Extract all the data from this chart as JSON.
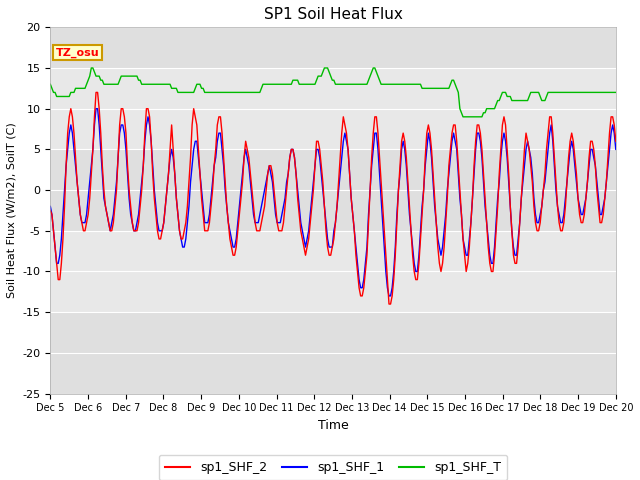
{
  "title": "SP1 Soil Heat Flux",
  "xlabel": "Time",
  "ylabel": "Soil Heat Flux (W/m2), SoilT (C)",
  "ylim": [
    -25,
    20
  ],
  "xlim": [
    0,
    360
  ],
  "background_color": "#ffffff",
  "plot_bg_color": "#e8e8e8",
  "grid_color": "#ffffff",
  "tz_label": "TZ_osu",
  "legend_entries": [
    "sp1_SHF_2",
    "sp1_SHF_1",
    "sp1_SHF_T"
  ],
  "line_colors": [
    "#ff0000",
    "#0000ff",
    "#00bb00"
  ],
  "tick_labels": [
    "Dec 5",
    "Dec 6",
    "Dec 7",
    "Dec 8",
    "Dec 9",
    "Dec 10",
    "Dec 11",
    "Dec 12",
    "Dec 13",
    "Dec 14",
    "Dec 15",
    "Dec 16",
    "Dec 17",
    "Dec 18",
    "Dec 19",
    "Dec 20"
  ],
  "tick_positions": [
    0,
    24,
    48,
    72,
    96,
    120,
    144,
    168,
    192,
    216,
    240,
    264,
    288,
    312,
    336,
    360
  ],
  "yticks": [
    -25,
    -20,
    -15,
    -10,
    -5,
    0,
    5,
    10,
    15,
    20
  ],
  "figsize": [
    6.4,
    4.8
  ],
  "dpi": 100,
  "shf2_data": [
    -2.5,
    -3,
    -5,
    -7,
    -9,
    -11,
    -11,
    -9,
    -6,
    -2,
    3,
    7,
    9,
    10,
    9,
    7,
    4,
    1,
    -1,
    -3,
    -4,
    -5,
    -5,
    -4,
    -3,
    -1,
    2,
    5,
    9,
    12,
    12,
    10,
    7,
    3,
    0,
    -2,
    -3,
    -4,
    -5,
    -5,
    -4,
    -2,
    0,
    4,
    8,
    10,
    10,
    9,
    7,
    3,
    0,
    -2,
    -4,
    -5,
    -5,
    -5,
    -4,
    -2,
    0,
    3,
    7,
    10,
    10,
    9,
    6,
    2,
    -1,
    -3,
    -5,
    -6,
    -6,
    -5,
    -4,
    -2,
    0,
    2,
    5,
    8,
    5,
    2,
    -1,
    -3,
    -5,
    -6,
    -6,
    -5,
    -4,
    -2,
    1,
    4,
    8,
    10,
    9,
    8,
    5,
    2,
    -1,
    -3,
    -5,
    -5,
    -5,
    -4,
    -2,
    0,
    3,
    5,
    8,
    9,
    9,
    7,
    4,
    1,
    -2,
    -4,
    -6,
    -7,
    -8,
    -8,
    -7,
    -5,
    -3,
    -1,
    1,
    4,
    6,
    5,
    4,
    2,
    0,
    -2,
    -4,
    -5,
    -5,
    -5,
    -4,
    -3,
    -2,
    0,
    2,
    3,
    3,
    2,
    0,
    -2,
    -4,
    -5,
    -5,
    -5,
    -4,
    -2,
    0,
    2,
    4,
    5,
    5,
    4,
    2,
    -1,
    -3,
    -5,
    -6,
    -7,
    -8,
    -7,
    -6,
    -4,
    -2,
    0,
    3,
    6,
    6,
    5,
    3,
    1,
    -2,
    -5,
    -7,
    -8,
    -8,
    -7,
    -6,
    -4,
    -2,
    1,
    4,
    7,
    9,
    8,
    7,
    5,
    2,
    -1,
    -3,
    -5,
    -8,
    -10,
    -12,
    -13,
    -13,
    -12,
    -10,
    -8,
    -4,
    0,
    4,
    7,
    9,
    9,
    7,
    4,
    1,
    -2,
    -5,
    -8,
    -11,
    -14,
    -14,
    -13,
    -11,
    -8,
    -4,
    0,
    3,
    6,
    7,
    6,
    4,
    1,
    -2,
    -5,
    -8,
    -10,
    -11,
    -11,
    -9,
    -6,
    -3,
    0,
    4,
    7,
    8,
    7,
    5,
    2,
    -1,
    -4,
    -7,
    -9,
    -10,
    -9,
    -7,
    -4,
    -1,
    3,
    5,
    7,
    8,
    8,
    6,
    3,
    0,
    -3,
    -6,
    -8,
    -10,
    -9,
    -7,
    -4,
    -1,
    3,
    6,
    8,
    8,
    7,
    5,
    2,
    -1,
    -4,
    -7,
    -9,
    -10,
    -10,
    -8,
    -5,
    -2,
    2,
    5,
    8,
    9,
    8,
    5,
    2,
    -2,
    -5,
    -8,
    -9,
    -9,
    -7,
    -4,
    -1,
    2,
    5,
    7,
    6,
    5,
    3,
    1,
    -2,
    -4,
    -5,
    -5,
    -4,
    -2,
    0,
    2,
    5,
    7,
    9,
    9,
    7,
    4,
    1,
    -2,
    -4,
    -5,
    -5,
    -4,
    -2,
    1,
    4,
    6,
    7,
    6,
    4,
    2,
    -1,
    -3,
    -4,
    -4,
    -3,
    -1,
    1,
    4,
    6,
    6,
    5,
    3,
    0,
    -2,
    -4,
    -4,
    -3,
    -1,
    1,
    4,
    7,
    9,
    9,
    8,
    6
  ],
  "shf1_data": [
    -2,
    -3,
    -5,
    -7,
    -9,
    -9,
    -8,
    -6,
    -3,
    0,
    3,
    5,
    7,
    8,
    7,
    5,
    3,
    1,
    -1,
    -3,
    -4,
    -4,
    -4,
    -3,
    -1,
    1,
    3,
    5,
    8,
    10,
    10,
    8,
    5,
    2,
    -1,
    -2,
    -3,
    -4,
    -5,
    -4,
    -3,
    -1,
    1,
    4,
    7,
    8,
    8,
    7,
    5,
    2,
    -1,
    -3,
    -4,
    -5,
    -5,
    -4,
    -3,
    -1,
    1,
    3,
    6,
    8,
    9,
    8,
    6,
    3,
    0,
    -2,
    -4,
    -5,
    -5,
    -5,
    -4,
    -2,
    0,
    2,
    4,
    5,
    4,
    2,
    -1,
    -3,
    -5,
    -6,
    -7,
    -7,
    -6,
    -4,
    -2,
    1,
    3,
    5,
    6,
    6,
    4,
    2,
    0,
    -2,
    -4,
    -4,
    -4,
    -3,
    -1,
    1,
    3,
    4,
    6,
    7,
    7,
    5,
    3,
    0,
    -2,
    -4,
    -5,
    -6,
    -7,
    -7,
    -6,
    -4,
    -2,
    0,
    2,
    4,
    5,
    4,
    3,
    1,
    -1,
    -3,
    -4,
    -4,
    -4,
    -3,
    -2,
    -1,
    0,
    1,
    2,
    3,
    2,
    1,
    -1,
    -3,
    -4,
    -4,
    -4,
    -3,
    -2,
    -1,
    1,
    2,
    4,
    5,
    5,
    4,
    2,
    0,
    -2,
    -4,
    -5,
    -6,
    -7,
    -6,
    -5,
    -3,
    -1,
    1,
    3,
    5,
    5,
    4,
    2,
    0,
    -2,
    -4,
    -6,
    -7,
    -7,
    -7,
    -5,
    -4,
    -2,
    0,
    2,
    4,
    6,
    7,
    6,
    5,
    2,
    -1,
    -3,
    -5,
    -7,
    -9,
    -11,
    -12,
    -12,
    -11,
    -9,
    -7,
    -3,
    0,
    3,
    5,
    7,
    7,
    5,
    2,
    -1,
    -4,
    -7,
    -10,
    -12,
    -13,
    -13,
    -12,
    -10,
    -7,
    -3,
    0,
    2,
    5,
    6,
    5,
    3,
    0,
    -3,
    -5,
    -7,
    -9,
    -10,
    -10,
    -8,
    -5,
    -2,
    0,
    3,
    5,
    7,
    6,
    4,
    1,
    -2,
    -4,
    -6,
    -7,
    -8,
    -7,
    -5,
    -3,
    0,
    2,
    4,
    6,
    7,
    6,
    5,
    2,
    -1,
    -3,
    -6,
    -7,
    -8,
    -8,
    -6,
    -4,
    -1,
    2,
    5,
    7,
    7,
    6,
    4,
    1,
    -2,
    -4,
    -6,
    -8,
    -9,
    -9,
    -7,
    -4,
    -1,
    1,
    4,
    6,
    7,
    6,
    4,
    1,
    -2,
    -5,
    -7,
    -8,
    -8,
    -6,
    -4,
    -1,
    1,
    3,
    5,
    6,
    5,
    4,
    2,
    -1,
    -3,
    -4,
    -4,
    -3,
    -2,
    0,
    1,
    3,
    5,
    7,
    8,
    6,
    3,
    0,
    -2,
    -3,
    -4,
    -4,
    -3,
    -1,
    1,
    3,
    5,
    6,
    5,
    3,
    1,
    -1,
    -2,
    -3,
    -3,
    -2,
    -1,
    1,
    3,
    5,
    5,
    4,
    3,
    1,
    -1,
    -3,
    -3,
    -2,
    -1,
    1,
    3,
    5,
    7,
    8,
    7,
    5
  ],
  "shft_data": [
    13.0,
    12.5,
    12.0,
    12.0,
    11.5,
    11.5,
    11.5,
    11.5,
    11.5,
    11.5,
    11.5,
    11.5,
    11.5,
    12.0,
    12.0,
    12.0,
    12.5,
    12.5,
    12.5,
    12.5,
    12.5,
    12.5,
    12.5,
    13.0,
    13.5,
    14.0,
    15.0,
    15.0,
    14.5,
    14.0,
    14.0,
    14.0,
    13.5,
    13.5,
    13.0,
    13.0,
    13.0,
    13.0,
    13.0,
    13.0,
    13.0,
    13.0,
    13.0,
    13.0,
    13.5,
    14.0,
    14.0,
    14.0,
    14.0,
    14.0,
    14.0,
    14.0,
    14.0,
    14.0,
    14.0,
    14.0,
    13.5,
    13.5,
    13.0,
    13.0,
    13.0,
    13.0,
    13.0,
    13.0,
    13.0,
    13.0,
    13.0,
    13.0,
    13.0,
    13.0,
    13.0,
    13.0,
    13.0,
    13.0,
    13.0,
    13.0,
    13.0,
    12.5,
    12.5,
    12.5,
    12.5,
    12.0,
    12.0,
    12.0,
    12.0,
    12.0,
    12.0,
    12.0,
    12.0,
    12.0,
    12.0,
    12.0,
    12.5,
    13.0,
    13.0,
    13.0,
    12.5,
    12.5,
    12.0,
    12.0,
    12.0,
    12.0,
    12.0,
    12.0,
    12.0,
    12.0,
    12.0,
    12.0,
    12.0,
    12.0,
    12.0,
    12.0,
    12.0,
    12.0,
    12.0,
    12.0,
    12.0,
    12.0,
    12.0,
    12.0,
    12.0,
    12.0,
    12.0,
    12.0,
    12.0,
    12.0,
    12.0,
    12.0,
    12.0,
    12.0,
    12.0,
    12.0,
    12.0,
    12.0,
    12.5,
    13.0,
    13.0,
    13.0,
    13.0,
    13.0,
    13.0,
    13.0,
    13.0,
    13.0,
    13.0,
    13.0,
    13.0,
    13.0,
    13.0,
    13.0,
    13.0,
    13.0,
    13.0,
    13.0,
    13.5,
    13.5,
    13.5,
    13.5,
    13.0,
    13.0,
    13.0,
    13.0,
    13.0,
    13.0,
    13.0,
    13.0,
    13.0,
    13.0,
    13.0,
    13.5,
    14.0,
    14.0,
    14.0,
    14.5,
    15.0,
    15.0,
    15.0,
    14.5,
    14.0,
    13.5,
    13.5,
    13.0,
    13.0,
    13.0,
    13.0,
    13.0,
    13.0,
    13.0,
    13.0,
    13.0,
    13.0,
    13.0,
    13.0,
    13.0,
    13.0,
    13.0,
    13.0,
    13.0,
    13.0,
    13.0,
    13.0,
    13.0,
    13.5,
    14.0,
    14.5,
    15.0,
    15.0,
    14.5,
    14.0,
    13.5,
    13.0,
    13.0,
    13.0,
    13.0,
    13.0,
    13.0,
    13.0,
    13.0,
    13.0,
    13.0,
    13.0,
    13.0,
    13.0,
    13.0,
    13.0,
    13.0,
    13.0,
    13.0,
    13.0,
    13.0,
    13.0,
    13.0,
    13.0,
    13.0,
    13.0,
    13.0,
    12.5,
    12.5,
    12.5,
    12.5,
    12.5,
    12.5,
    12.5,
    12.5,
    12.5,
    12.5,
    12.5,
    12.5,
    12.5,
    12.5,
    12.5,
    12.5,
    12.5,
    12.5,
    13.0,
    13.5,
    13.5,
    13.0,
    12.5,
    12.0,
    10.0,
    9.5,
    9.0,
    9.0,
    9.0,
    9.0,
    9.0,
    9.0,
    9.0,
    9.0,
    9.0,
    9.0,
    9.0,
    9.0,
    9.0,
    9.5,
    9.5,
    10.0,
    10.0,
    10.0,
    10.0,
    10.0,
    10.0,
    10.5,
    11.0,
    11.0,
    11.5,
    12.0,
    12.0,
    12.0,
    11.5,
    11.5,
    11.5,
    11.0,
    11.0,
    11.0,
    11.0,
    11.0,
    11.0,
    11.0,
    11.0,
    11.0,
    11.0,
    11.0,
    11.5,
    12.0,
    12.0,
    12.0,
    12.0,
    12.0,
    12.0,
    11.5,
    11.0,
    11.0,
    11.0,
    11.5,
    12.0,
    12.0,
    12.0,
    12.0,
    12.0,
    12.0,
    12.0,
    12.0,
    12.0,
    12.0,
    12.0,
    12.0,
    12.0,
    12.0,
    12.0,
    12.0,
    12.0,
    12.0,
    12.0,
    12.0,
    12.0,
    12.0,
    12.0,
    12.0,
    12.0,
    12.0,
    12.0,
    12.0,
    12.0,
    12.0,
    12.0,
    12.0,
    12.0,
    12.0,
    12.0,
    12.0,
    12.0,
    12.0,
    12.0,
    12.0,
    12.0,
    12.0,
    12.0,
    12.0
  ]
}
